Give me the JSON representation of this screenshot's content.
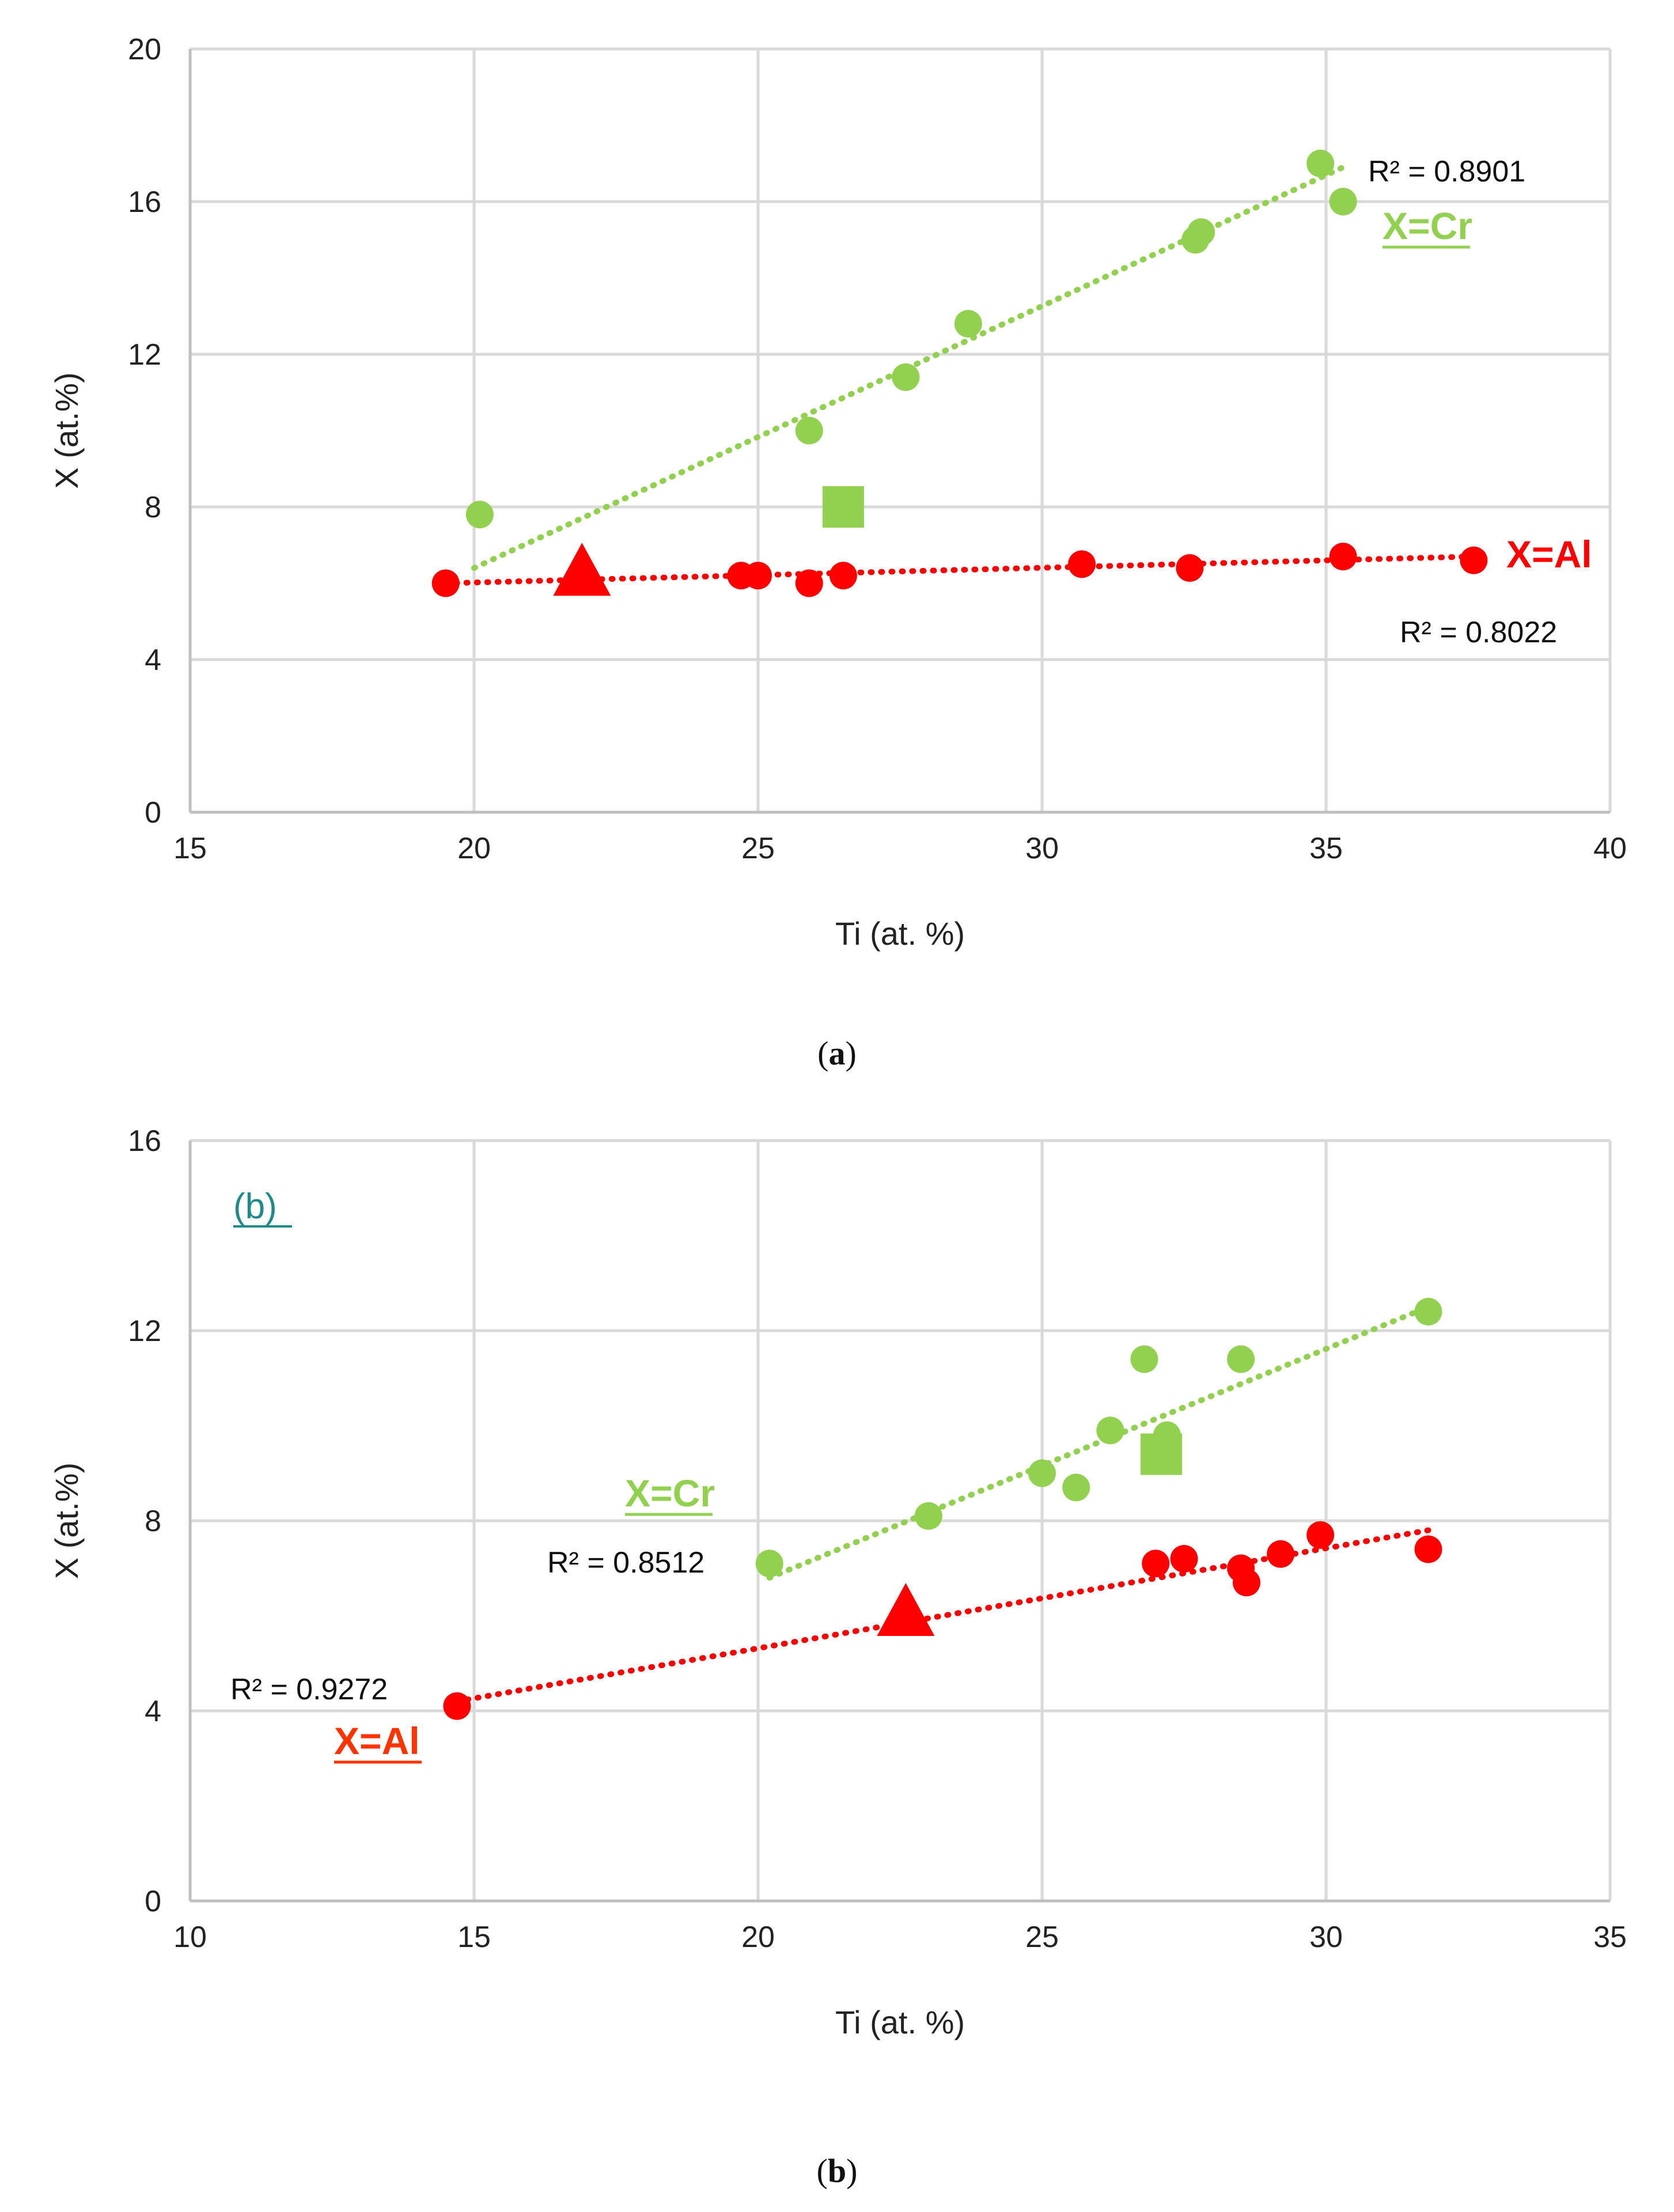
{
  "colors": {
    "cr": "#92d050",
    "al": "#ff0000",
    "al_label_b": "#ff3300",
    "teal": "#1f8a8a",
    "grid": "#d9d9d9",
    "axis": "#bfbfbf"
  },
  "captions": {
    "a_open": "(",
    "a_letter": "a",
    "a_close": ")",
    "b_open": "(",
    "b_letter": "b",
    "b_close": ")"
  },
  "chart_data": [
    {
      "type": "scatter",
      "panel": "a",
      "xlabel": "Ti (at. %)",
      "ylabel": "X (at.%)",
      "xlim": [
        15,
        40
      ],
      "ylim": [
        0,
        20
      ],
      "xticks": [
        15,
        20,
        25,
        30,
        35,
        40
      ],
      "yticks": [
        0,
        4,
        8,
        12,
        16,
        20
      ],
      "grid": true,
      "series": [
        {
          "name": "X=Cr",
          "marker": "circle",
          "color": "#92d050",
          "x": [
            20.1,
            25.9,
            27.6,
            28.7,
            32.7,
            32.8,
            34.9,
            35.3
          ],
          "y": [
            7.8,
            10.0,
            11.4,
            12.8,
            15.0,
            15.2,
            17.0,
            16.0
          ],
          "trendline": {
            "x": [
              20.0,
              35.3
            ],
            "y": [
              6.4,
              16.9
            ]
          },
          "r2": "R² = 0.8901"
        },
        {
          "name": "X=Al",
          "marker": "circle",
          "color": "#ff0000",
          "x": [
            19.5,
            24.7,
            25.0,
            25.9,
            26.5,
            30.7,
            32.6,
            35.3,
            37.6
          ],
          "y": [
            6.0,
            6.2,
            6.2,
            6.0,
            6.2,
            6.5,
            6.4,
            6.7,
            6.6
          ],
          "trendline": {
            "x": [
              19.5,
              37.6
            ],
            "y": [
              6.0,
              6.7
            ]
          },
          "r2": "R² = 0.8022"
        },
        {
          "marker": "square",
          "color": "#92d050",
          "x": [
            26.5
          ],
          "y": [
            8.0
          ]
        },
        {
          "marker": "triangle",
          "color": "#ff0000",
          "x": [
            21.9
          ],
          "y": [
            6.2
          ]
        }
      ],
      "annotations": {
        "cr_label": "X=Cr",
        "al_label": "X=Al"
      }
    },
    {
      "type": "scatter",
      "panel": "b",
      "xlabel": "Ti (at. %)",
      "ylabel": "X (at.%)",
      "xlim": [
        10,
        35
      ],
      "ylim": [
        0,
        16
      ],
      "xticks": [
        10,
        15,
        20,
        25,
        30,
        35
      ],
      "yticks": [
        0,
        4,
        8,
        12,
        16
      ],
      "grid": true,
      "series": [
        {
          "name": "X=Cr",
          "marker": "circle",
          "color": "#92d050",
          "x": [
            20.2,
            23.0,
            25.0,
            25.6,
            26.2,
            26.8,
            27.2,
            28.5,
            31.8
          ],
          "y": [
            7.1,
            8.1,
            9.0,
            8.7,
            9.9,
            11.4,
            9.8,
            11.4,
            12.4
          ],
          "trendline": {
            "x": [
              20.2,
              31.8
            ],
            "y": [
              6.8,
              12.5
            ]
          },
          "r2": "R² = 0.8512"
        },
        {
          "name": "X=Al",
          "marker": "circle",
          "color": "#ff0000",
          "x": [
            14.7,
            27.0,
            27.5,
            28.5,
            28.6,
            29.2,
            29.9,
            31.8
          ],
          "y": [
            4.1,
            7.1,
            7.2,
            7.0,
            6.7,
            7.3,
            7.7,
            7.4
          ],
          "trendline": {
            "x": [
              14.7,
              31.8
            ],
            "y": [
              4.2,
              7.8
            ]
          },
          "r2": "R² = 0.9272"
        },
        {
          "marker": "square",
          "color": "#92d050",
          "x": [
            27.1
          ],
          "y": [
            9.4
          ]
        },
        {
          "marker": "triangle",
          "color": "#ff0000",
          "x": [
            22.6
          ],
          "y": [
            6.0
          ]
        }
      ],
      "annotations": {
        "cr_label": "X=Cr",
        "al_label": "X=Al",
        "panel_tag": "(b)"
      }
    }
  ]
}
